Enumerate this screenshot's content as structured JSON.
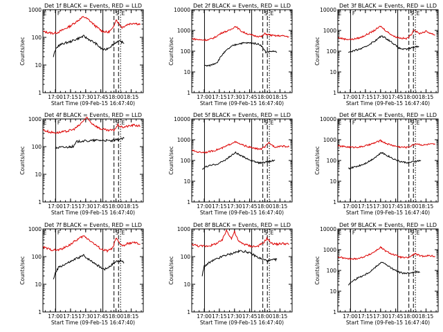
{
  "figure": {
    "y_axis_label": "Counts/sec",
    "x_axis_label": "Start Time (09-Feb-15 16:47:40)"
  },
  "chart_data": [
    {
      "type": "line",
      "title": "Det 1f BLACK = Events, RED = LLD",
      "xlabel": "Start Time (09-Feb-15 16:47:40)",
      "ylabel": "Counts/sec",
      "y_scale": "log",
      "ylim": [
        1,
        1000
      ],
      "y_ticks": [
        "1",
        "10",
        "100",
        "1000"
      ],
      "x_ticks": [
        "17:00",
        "17:15",
        "17:30",
        "17:45",
        "18:00",
        "18:15"
      ],
      "markers": [
        "E",
        "F",
        "S",
        "E"
      ],
      "series": [
        {
          "name": "LLD",
          "color": "#dd0000",
          "x": [
            "16:48",
            "16:58",
            "17:02",
            "17:08",
            "17:15",
            "17:22",
            "17:28",
            "17:33",
            "17:40",
            "17:46",
            "17:52",
            "17:57",
            "18:00",
            "18:03",
            "18:06",
            "18:12",
            "18:18",
            "18:24"
          ],
          "values": [
            160,
            140,
            150,
            190,
            260,
            400,
            560,
            430,
            250,
            170,
            150,
            210,
            450,
            310,
            230,
            300,
            330,
            290
          ]
        },
        {
          "name": "Events",
          "color": "#000000",
          "x": [
            "16:58",
            "17:00",
            "17:03",
            "17:08",
            "17:15",
            "17:22",
            "17:28",
            "17:33",
            "17:40",
            "17:45",
            "17:49",
            "17:54",
            "17:57",
            "18:01",
            "18:05",
            "18:08"
          ],
          "values": [
            20,
            35,
            50,
            60,
            70,
            90,
            110,
            85,
            60,
            40,
            35,
            45,
            55,
            70,
            70,
            60
          ]
        }
      ]
    },
    {
      "type": "line",
      "title": "Det 2f BLACK = Events, RED = LLD",
      "xlabel": "Start Time (09-Feb-15 16:47:40)",
      "ylabel": "Counts/sec",
      "y_scale": "log",
      "ylim": [
        1,
        10000
      ],
      "y_ticks": [
        "1",
        "10",
        "100",
        "1000",
        "10000"
      ],
      "x_ticks": [
        "17:00",
        "17:15",
        "17:30",
        "17:45",
        "18:00",
        "18:15"
      ],
      "markers": [
        "S",
        "E"
      ],
      "series": [
        {
          "name": "LLD",
          "color": "#dd0000",
          "x": [
            "16:48",
            "16:56",
            "17:04",
            "17:10",
            "17:18",
            "17:25",
            "17:31",
            "17:37",
            "17:44",
            "17:50",
            "17:57",
            "18:00",
            "18:05",
            "18:10",
            "18:17",
            "18:24"
          ],
          "values": [
            400,
            350,
            350,
            450,
            800,
            1000,
            1600,
            900,
            650,
            550,
            500,
            700,
            600,
            550,
            550,
            500
          ]
        },
        {
          "name": "Events",
          "color": "#000000",
          "x": [
            "17:00",
            "17:05",
            "17:10",
            "17:13",
            "17:18",
            "17:23",
            "17:28",
            "17:34",
            "17:40",
            "17:46",
            "17:52",
            "17:56",
            "18:01",
            "18:08",
            "18:12"
          ],
          "values": [
            20,
            20,
            25,
            30,
            70,
            120,
            180,
            230,
            250,
            250,
            230,
            200,
            90,
            100,
            90
          ]
        }
      ]
    },
    {
      "type": "line",
      "title": "Det 3f BLACK = Events, RED = LLD",
      "xlabel": "Start Time (09-Feb-15 16:47:40)",
      "ylabel": "Counts/sec",
      "y_scale": "log",
      "ylim": [
        1,
        10000
      ],
      "y_ticks": [
        "1",
        "10",
        "100",
        "1000",
        "10000"
      ],
      "x_ticks": [
        "17:00",
        "17:15",
        "17:30",
        "17:45",
        "18:00",
        "18:15"
      ],
      "markers": [
        "E",
        "F",
        "S",
        "E"
      ],
      "series": [
        {
          "name": "LLD",
          "color": "#dd0000",
          "x": [
            "16:48",
            "16:55",
            "17:02",
            "17:10",
            "17:18",
            "17:24",
            "17:30",
            "17:36",
            "17:44",
            "17:50",
            "17:56",
            "18:00",
            "18:03",
            "18:08",
            "18:15",
            "18:24"
          ],
          "values": [
            450,
            380,
            370,
            450,
            700,
            1000,
            1600,
            900,
            500,
            430,
            400,
            600,
            1100,
            700,
            900,
            600
          ]
        },
        {
          "name": "Events",
          "color": "#000000",
          "x": [
            "16:58",
            "17:02",
            "17:08",
            "17:14",
            "17:20",
            "17:26",
            "17:31",
            "17:36",
            "17:42",
            "17:48",
            "17:54",
            "17:58",
            "18:03",
            "18:08"
          ],
          "values": [
            90,
            100,
            120,
            150,
            230,
            350,
            550,
            400,
            250,
            140,
            120,
            130,
            160,
            170
          ]
        }
      ]
    },
    {
      "type": "line",
      "title": "Det 4f BLACK = Events, RED = LLD",
      "xlabel": "Start Time (09-Feb-15 16:47:40)",
      "ylabel": "Counts/sec",
      "y_scale": "log",
      "ylim": [
        1,
        1000
      ],
      "y_ticks": [
        "1",
        "10",
        "100",
        "1000"
      ],
      "x_ticks": [
        "17:00",
        "17:15",
        "17:30",
        "17:45",
        "18:00",
        "18:15"
      ],
      "markers": [
        "E",
        "F",
        "S",
        "E"
      ],
      "series": [
        {
          "name": "LLD",
          "color": "#dd0000",
          "x": [
            "16:48",
            "16:55",
            "17:02",
            "17:10",
            "17:18",
            "17:24",
            "17:28",
            "17:31",
            "17:36",
            "17:44",
            "17:52",
            "17:58",
            "18:02",
            "18:06",
            "18:12",
            "18:18",
            "18:24"
          ],
          "values": [
            400,
            330,
            320,
            350,
            420,
            600,
            900,
            1100,
            700,
            450,
            380,
            400,
            600,
            500,
            550,
            600,
            550
          ]
        },
        {
          "name": "Events",
          "color": "#000000",
          "x": [
            "17:00",
            "17:05",
            "17:10",
            "17:15",
            "17:18",
            "17:21",
            "17:26",
            "17:32",
            "17:40",
            "17:48",
            "17:55",
            "18:02",
            "18:08"
          ],
          "values": [
            90,
            95,
            95,
            100,
            100,
            150,
            160,
            160,
            170,
            170,
            160,
            180,
            200
          ]
        }
      ]
    },
    {
      "type": "line",
      "title": "Det 5f BLACK = Events, RED = LLD",
      "xlabel": "Start Time (09-Feb-15 16:47:40)",
      "ylabel": "Counts/sec",
      "y_scale": "log",
      "ylim": [
        1,
        10000
      ],
      "y_ticks": [
        "1",
        "10",
        "100",
        "1000",
        "10000"
      ],
      "x_ticks": [
        "17:00",
        "17:15",
        "17:30",
        "17:45",
        "18:00",
        "18:15"
      ],
      "markers": [
        "S",
        "E"
      ],
      "series": [
        {
          "name": "LLD",
          "color": "#dd0000",
          "x": [
            "16:48",
            "16:55",
            "17:02",
            "17:10",
            "17:18",
            "17:24",
            "17:30",
            "17:36",
            "17:44",
            "17:50",
            "17:56",
            "18:00",
            "18:04",
            "18:10",
            "18:16",
            "18:24"
          ],
          "values": [
            300,
            250,
            250,
            300,
            400,
            550,
            800,
            600,
            450,
            380,
            350,
            450,
            700,
            450,
            500,
            450
          ]
        },
        {
          "name": "Events",
          "color": "#000000",
          "x": [
            "16:58",
            "17:02",
            "17:08",
            "17:14",
            "17:20",
            "17:26",
            "17:31",
            "17:37",
            "17:43",
            "17:49",
            "17:55",
            "17:59",
            "18:04",
            "18:10"
          ],
          "values": [
            40,
            50,
            60,
            70,
            100,
            160,
            240,
            160,
            120,
            90,
            75,
            80,
            90,
            100
          ]
        }
      ]
    },
    {
      "type": "line",
      "title": "Det 6f BLACK = Events, RED = LLD",
      "xlabel": "Start Time (09-Feb-15 16:47:40)",
      "ylabel": "Counts/sec",
      "y_scale": "log",
      "ylim": [
        1,
        10000
      ],
      "y_ticks": [
        "1",
        "10",
        "100",
        "1000",
        "10000"
      ],
      "x_ticks": [
        "17:00",
        "17:15",
        "17:30",
        "17:45",
        "18:00",
        "18:15"
      ],
      "markers": [
        "E",
        "F",
        "S",
        "E"
      ],
      "series": [
        {
          "name": "LLD",
          "color": "#dd0000",
          "x": [
            "16:48",
            "16:55",
            "17:02",
            "17:10",
            "17:18",
            "17:24",
            "17:30",
            "17:36",
            "17:44",
            "17:50",
            "17:56",
            "18:00",
            "18:05",
            "18:12",
            "18:18",
            "18:24"
          ],
          "values": [
            500,
            460,
            430,
            450,
            550,
            700,
            900,
            650,
            500,
            440,
            430,
            500,
            650,
            550,
            600,
            600
          ]
        },
        {
          "name": "Events",
          "color": "#000000",
          "x": [
            "16:58",
            "17:02",
            "17:08",
            "17:14",
            "17:20",
            "17:26",
            "17:31",
            "17:37",
            "17:43",
            "17:49",
            "17:55",
            "17:59",
            "18:04",
            "18:10"
          ],
          "values": [
            40,
            45,
            55,
            70,
            100,
            160,
            240,
            170,
            120,
            90,
            80,
            80,
            90,
            100
          ]
        }
      ]
    },
    {
      "type": "line",
      "title": "Det 7f BLACK = Events, RED = LLD",
      "xlabel": "Start Time (09-Feb-15 16:47:40)",
      "ylabel": "Counts/sec",
      "y_scale": "log",
      "ylim": [
        1,
        1000
      ],
      "y_ticks": [
        "1",
        "10",
        "100",
        "1000"
      ],
      "x_ticks": [
        "17:00",
        "17:15",
        "17:30",
        "17:45",
        "18:00",
        "18:15"
      ],
      "markers": [
        "E",
        "F",
        "S",
        "E"
      ],
      "series": [
        {
          "name": "LLD",
          "color": "#dd0000",
          "x": [
            "16:48",
            "16:55",
            "17:02",
            "17:08",
            "17:15",
            "17:22",
            "17:28",
            "17:33",
            "17:40",
            "17:46",
            "17:52",
            "17:57",
            "18:00",
            "18:03",
            "18:07",
            "18:12",
            "18:18",
            "18:24"
          ],
          "values": [
            220,
            180,
            170,
            200,
            280,
            420,
            560,
            420,
            260,
            180,
            160,
            210,
            460,
            320,
            240,
            300,
            320,
            280
          ]
        },
        {
          "name": "Events",
          "color": "#000000",
          "x": [
            "16:58",
            "17:00",
            "17:03",
            "17:08",
            "17:15",
            "17:22",
            "17:28",
            "17:33",
            "17:40",
            "17:45",
            "17:49",
            "17:54",
            "17:57",
            "18:01",
            "18:05",
            "18:08"
          ],
          "values": [
            15,
            25,
            40,
            50,
            65,
            90,
            110,
            80,
            55,
            40,
            35,
            45,
            55,
            70,
            70,
            60
          ]
        }
      ]
    },
    {
      "type": "line",
      "title": "Det 8f BLACK = Events, RED = LLD",
      "xlabel": "Start Time (09-Feb-15 16:47:40)",
      "ylabel": "Counts/sec",
      "y_scale": "log",
      "ylim": [
        1,
        1000
      ],
      "y_ticks": [
        "1",
        "10",
        "100",
        "1000"
      ],
      "x_ticks": [
        "17:00",
        "17:15",
        "17:30",
        "17:45",
        "18:00",
        "18:15"
      ],
      "markers": [
        "S",
        "E"
      ],
      "series": [
        {
          "name": "LLD",
          "color": "#dd0000",
          "x": [
            "16:48",
            "16:55",
            "17:02",
            "17:08",
            "17:14",
            "17:18",
            "17:22",
            "17:27",
            "17:30",
            "17:34",
            "17:40",
            "17:46",
            "17:52",
            "17:58",
            "18:02",
            "18:07",
            "18:12",
            "18:18",
            "18:24"
          ],
          "values": [
            280,
            240,
            240,
            260,
            320,
            400,
            900,
            450,
            800,
            350,
            280,
            240,
            230,
            300,
            450,
            300,
            280,
            300,
            280
          ]
        },
        {
          "name": "Events",
          "color": "#000000",
          "x": [
            "16:58",
            "17:00",
            "17:05",
            "17:10",
            "17:15",
            "17:20",
            "17:25",
            "17:30",
            "17:36",
            "17:42",
            "17:48",
            "17:54",
            "17:58",
            "18:03",
            "18:08",
            "18:12"
          ],
          "values": [
            20,
            45,
            60,
            75,
            90,
            110,
            120,
            140,
            160,
            150,
            120,
            90,
            80,
            70,
            75,
            80
          ]
        }
      ]
    },
    {
      "type": "line",
      "title": "Det 9f BLACK = Events, RED = LLD",
      "xlabel": "Start Time (09-Feb-15 16:47:40)",
      "ylabel": "Counts/sec",
      "y_scale": "log",
      "ylim": [
        1,
        10000
      ],
      "y_ticks": [
        "1",
        "10",
        "100",
        "1000",
        "10000"
      ],
      "x_ticks": [
        "17:00",
        "17:15",
        "17:30",
        "17:45",
        "18:00",
        "18:15"
      ],
      "markers": [
        "E",
        "F",
        "S",
        "E"
      ],
      "series": [
        {
          "name": "LLD",
          "color": "#dd0000",
          "x": [
            "16:48",
            "16:55",
            "17:02",
            "17:10",
            "17:18",
            "17:24",
            "17:30",
            "17:36",
            "17:44",
            "17:50",
            "17:56",
            "18:00",
            "18:04",
            "18:10",
            "18:16",
            "18:24"
          ],
          "values": [
            450,
            380,
            350,
            400,
            550,
            800,
            1300,
            800,
            550,
            430,
            400,
            480,
            650,
            480,
            520,
            480
          ]
        },
        {
          "name": "Events",
          "color": "#000000",
          "x": [
            "16:58",
            "17:02",
            "17:08",
            "17:14",
            "17:20",
            "17:26",
            "17:31",
            "17:37",
            "17:43",
            "17:49",
            "17:55",
            "17:59",
            "18:04",
            "18:09"
          ],
          "values": [
            20,
            30,
            45,
            60,
            90,
            160,
            260,
            170,
            110,
            80,
            70,
            75,
            90,
            80
          ]
        }
      ]
    }
  ]
}
